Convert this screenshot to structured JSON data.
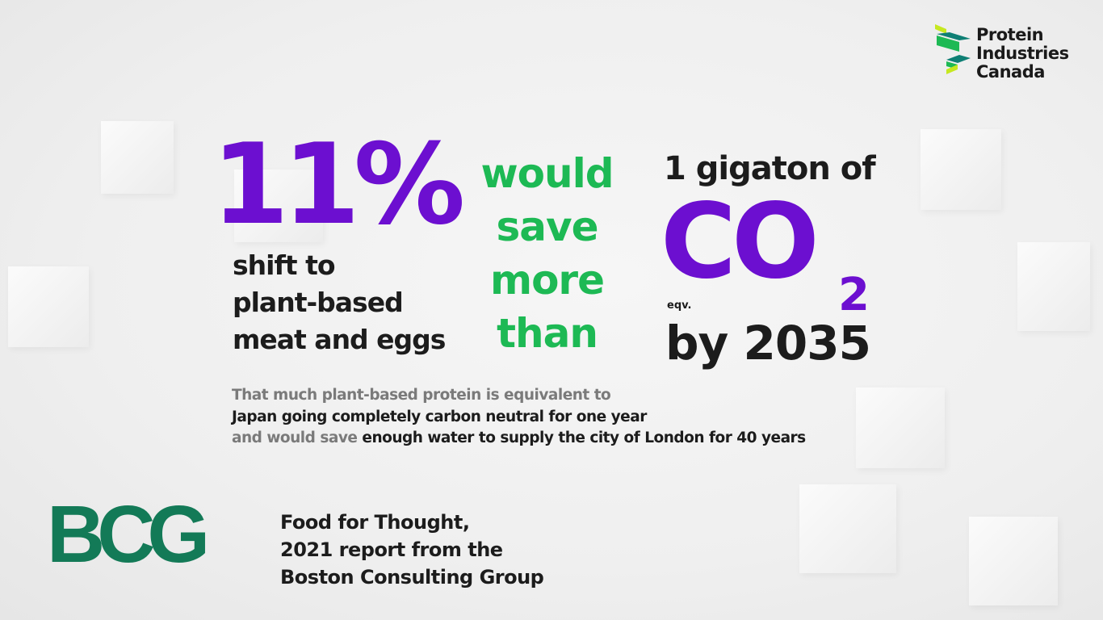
{
  "logo": {
    "name_lines": [
      "Protein",
      "Industries",
      "Canada"
    ]
  },
  "stat": {
    "percent": "11%",
    "shift_lines": [
      "shift to",
      "plant-based",
      "meat and eggs"
    ]
  },
  "middle": {
    "lines": [
      "would",
      "save",
      "more",
      "than"
    ]
  },
  "result": {
    "amount": "1 gigaton of",
    "co": "CO",
    "subscript": "2",
    "eqv": "eqv.",
    "by": "by 2035"
  },
  "detail": {
    "line1": "That much plant-based protein is equivalent to",
    "line2": "Japan going completely carbon neutral for one year",
    "line3_grey": "and would save",
    "line3_dark": "enough water to supply the city of London for 40 years"
  },
  "source": {
    "logo_text": "BCG",
    "lines": [
      "Food for Thought,",
      "2021 report from the",
      "Boston Consulting Group"
    ]
  },
  "colors": {
    "purple": "#6c0fd0",
    "green": "#1db954",
    "bcg_green": "#137a57"
  }
}
